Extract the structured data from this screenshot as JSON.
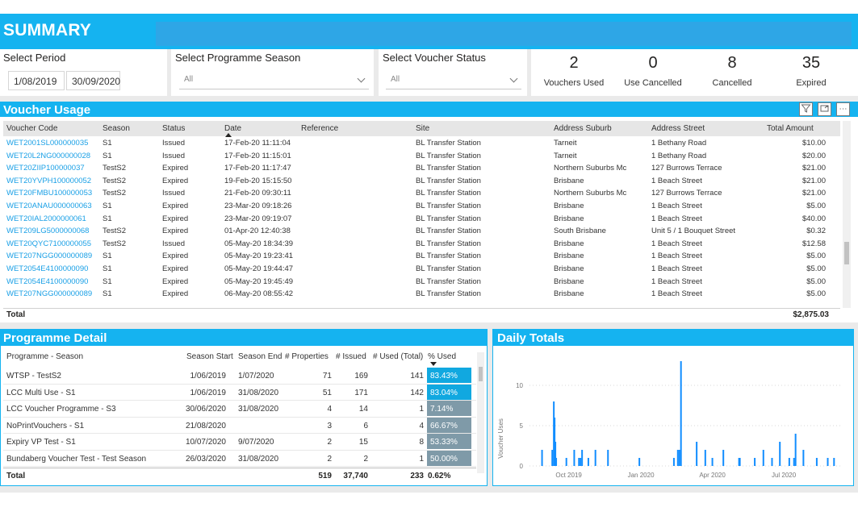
{
  "header": {
    "title": "SUMMARY"
  },
  "filters": {
    "period": {
      "label": "Select Period",
      "start": "1/08/2019",
      "end": "30/09/2020"
    },
    "season": {
      "label": "Select Programme Season",
      "value": "All"
    },
    "status": {
      "label": "Select Voucher Status",
      "value": "All"
    }
  },
  "kpis": [
    {
      "value": "2",
      "label": "Vouchers Used"
    },
    {
      "value": "0",
      "label": "Use Cancelled"
    },
    {
      "value": "8",
      "label": "Cancelled"
    },
    {
      "value": "35",
      "label": "Expired"
    }
  ],
  "voucher_usage": {
    "title": "Voucher Usage",
    "columns": [
      "Voucher Code",
      "Season",
      "Status",
      "Date",
      "Reference",
      "Site",
      "Address Suburb",
      "Address Street",
      "Total Amount"
    ],
    "rows": [
      [
        "WET2001SL000000035",
        "S1",
        "Issued",
        "17-Feb-20 11:11:04",
        "",
        "BL Transfer Station",
        "Tarneit",
        "1 Bethany Road",
        "$10.00"
      ],
      [
        "WET20L2NG000000028",
        "S1",
        "Issued",
        "17-Feb-20 11:15:01",
        "",
        "BL Transfer Station",
        "Tarneit",
        "1 Bethany Road",
        "$20.00"
      ],
      [
        "WET20ZIIP100000037",
        "TestS2",
        "Expired",
        "17-Feb-20 11:17:47",
        "",
        "BL Transfer Station",
        "Northern Suburbs Mc",
        "127 Burrows Terrace",
        "$21.00"
      ],
      [
        "WET20YVPH100000052",
        "TestS2",
        "Expired",
        "19-Feb-20 15:15:50",
        "",
        "BL Transfer Station",
        "Brisbane",
        "1 Beach Street",
        "$21.00"
      ],
      [
        "WET20FMBU100000053",
        "TestS2",
        "Issued",
        "21-Feb-20 09:30:11",
        "",
        "BL Transfer Station",
        "Northern Suburbs Mc",
        "127 Burrows Terrace",
        "$21.00"
      ],
      [
        "WET20ANAU000000063",
        "S1",
        "Expired",
        "23-Mar-20 09:18:26",
        "",
        "BL Transfer Station",
        "Brisbane",
        "1 Beach Street",
        "$5.00"
      ],
      [
        "WET20IAL2000000061",
        "S1",
        "Expired",
        "23-Mar-20 09:19:07",
        "",
        "BL Transfer Station",
        "Brisbane",
        "1 Beach Street",
        "$40.00"
      ],
      [
        "WET209LG5000000068",
        "TestS2",
        "Expired",
        "01-Apr-20 12:40:38",
        "",
        "BL Transfer Station",
        "South Brisbane",
        "Unit 5 / 1 Bouquet Street",
        "$0.32"
      ],
      [
        "WET20QYC7100000055",
        "TestS2",
        "Issued",
        "05-May-20 18:34:39",
        "",
        "BL Transfer Station",
        "Brisbane",
        "1 Beach Street",
        "$12.58"
      ],
      [
        "WET207NGG000000089",
        "S1",
        "Expired",
        "05-May-20 19:23:41",
        "",
        "BL Transfer Station",
        "Brisbane",
        "1 Beach Street",
        "$5.00"
      ],
      [
        "WET2054E4100000090",
        "S1",
        "Expired",
        "05-May-20 19:44:47",
        "",
        "BL Transfer Station",
        "Brisbane",
        "1 Beach Street",
        "$5.00"
      ],
      [
        "WET2054E4100000090",
        "S1",
        "Expired",
        "05-May-20 19:45:49",
        "",
        "BL Transfer Station",
        "Brisbane",
        "1 Beach Street",
        "$5.00"
      ],
      [
        "WET207NGG000000089",
        "S1",
        "Expired",
        "06-May-20 08:55:42",
        "",
        "BL Transfer Station",
        "Brisbane",
        "1 Beach Street",
        "$5.00"
      ]
    ],
    "total_label": "Total",
    "total_amount": "$2,875.03"
  },
  "programme_detail": {
    "title": "Programme Detail",
    "columns": [
      "Programme - Season",
      "Season Start",
      "Season End",
      "# Properties",
      "# Issued",
      "# Used (Total)",
      "% Used"
    ],
    "rows": [
      {
        "name": "WTSP - TestS2",
        "start": "1/06/2019",
        "end": "1/07/2020",
        "properties": "71",
        "issued": "169",
        "used": "141",
        "pct": "83.43%"
      },
      {
        "name": "LCC Multi Use - S1",
        "start": "1/06/2019",
        "end": "31/08/2020",
        "properties": "51",
        "issued": "171",
        "used": "142",
        "pct": "83.04%"
      },
      {
        "name": "LCC Voucher Programme - S3",
        "start": "30/06/2020",
        "end": "31/08/2020",
        "properties": "4",
        "issued": "14",
        "used": "1",
        "pct": "7.14%"
      },
      {
        "name": "NoPrintVouchers - S1",
        "start": "21/08/2020",
        "end": "",
        "properties": "3",
        "issued": "6",
        "used": "4",
        "pct": "66.67%"
      },
      {
        "name": "Expiry VP Test - S1",
        "start": "10/07/2020",
        "end": "9/07/2020",
        "properties": "2",
        "issued": "15",
        "used": "8",
        "pct": "53.33%"
      },
      {
        "name": "Bundaberg Voucher Test - Test Season",
        "start": "26/03/2020",
        "end": "31/08/2020",
        "properties": "2",
        "issued": "2",
        "used": "1",
        "pct": "50.00%"
      }
    ],
    "total": {
      "label": "Total",
      "properties": "519",
      "issued": "37,740",
      "used": "233",
      "pct": "0.62%"
    }
  },
  "colors": {
    "accent": "#15b3f0",
    "link": "#1aa0e6",
    "bar": "#118dff",
    "pct_high": "#11a8e0",
    "pct_low": "#7f9aa8"
  },
  "chart_data": {
    "type": "bar",
    "title": "Daily Totals",
    "ylabel": "Voucher Uses",
    "xlabel": "",
    "ylim": [
      0,
      14
    ],
    "yticks": [
      0,
      5,
      10
    ],
    "xticks": [
      "Oct 2019",
      "Jan 2020",
      "Apr 2020",
      "Jul 2020"
    ],
    "grid": true,
    "series": [
      {
        "x": [
          "2019-08-28",
          "2019-09-10",
          "2019-09-12",
          "2019-09-13",
          "2019-09-14",
          "2019-09-15",
          "2019-09-28",
          "2019-10-08",
          "2019-10-14",
          "2019-10-16",
          "2019-10-18",
          "2019-10-26",
          "2019-11-04",
          "2019-11-20",
          "2019-12-30",
          "2020-02-12",
          "2020-02-17",
          "2020-02-19",
          "2020-02-21",
          "2020-03-12",
          "2020-03-23",
          "2020-04-01",
          "2020-04-15",
          "2020-05-05",
          "2020-05-06",
          "2020-05-25",
          "2020-06-05",
          "2020-06-16",
          "2020-06-26",
          "2020-07-08",
          "2020-07-14",
          "2020-07-16",
          "2020-07-26",
          "2020-08-12",
          "2020-08-26",
          "2020-09-03"
        ],
        "y": [
          2,
          2,
          8,
          6,
          3,
          1,
          1,
          2,
          1,
          1,
          2,
          1,
          2,
          2,
          1,
          1,
          2,
          2,
          13,
          3,
          2,
          1,
          2,
          1,
          1,
          1,
          2,
          1,
          3,
          1,
          1,
          4,
          2,
          1,
          1,
          1
        ]
      }
    ]
  }
}
